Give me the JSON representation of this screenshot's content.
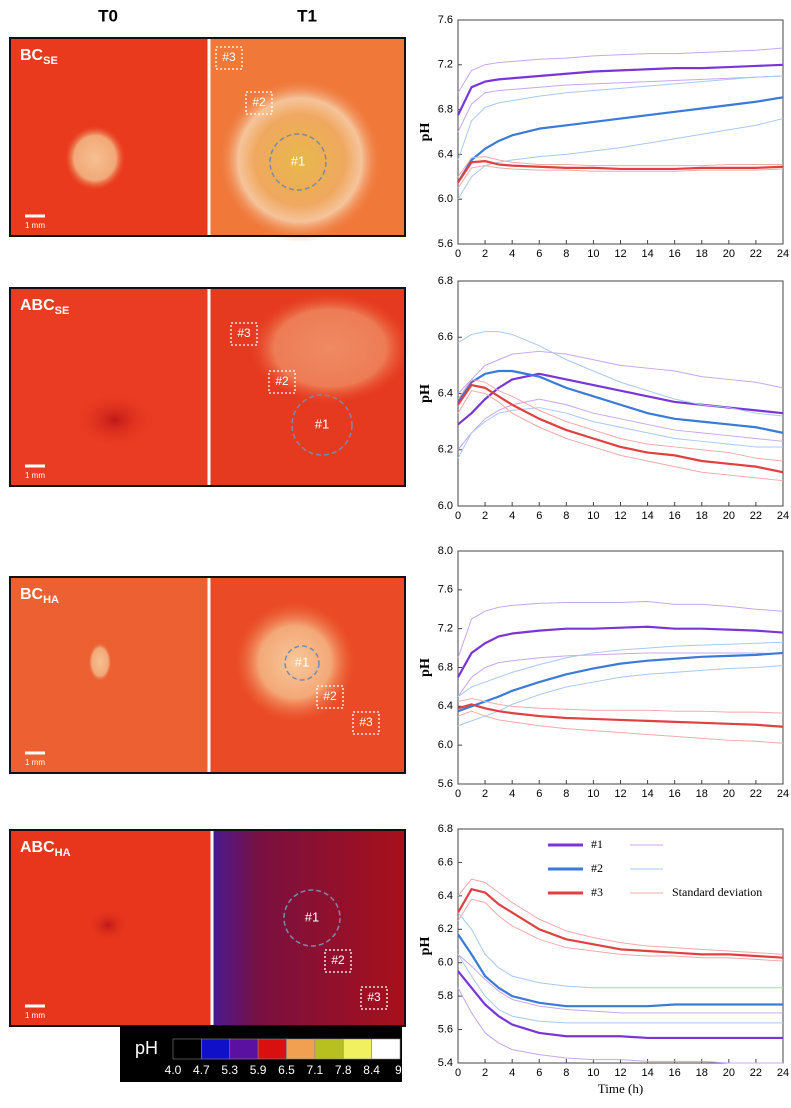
{
  "figure": {
    "column_titles": [
      "T0",
      "T1"
    ],
    "panels": [
      {
        "label": "BC",
        "label_sub": "SE",
        "regions": [
          "#1",
          "#2",
          "#3"
        ],
        "scale": "1 mm"
      },
      {
        "label": "ABC",
        "label_sub": "SE",
        "regions": [
          "#1",
          "#2",
          "#3"
        ],
        "scale": "1 mm"
      },
      {
        "label": "BC",
        "label_sub": "HA",
        "regions": [
          "#1",
          "#2",
          "#3"
        ],
        "scale": "1 mm"
      },
      {
        "label": "ABC",
        "label_sub": "HA",
        "regions": [
          "#1",
          "#2",
          "#3"
        ],
        "scale": "1 mm"
      }
    ],
    "colorbar": {
      "title": "pH",
      "ticks": [
        {
          "value": 4,
          "label": "4.0"
        },
        4.7,
        5.3,
        5.9,
        6.5,
        7.1,
        7.8,
        8.4,
        {
          "value": 9,
          "label": "9."
        }
      ],
      "colors": [
        "#000000",
        "#1010c8",
        "#5a10a0",
        "#d81010",
        "#f0a050",
        "#b8c020",
        "#f0f060",
        "#ffffff"
      ]
    }
  },
  "chart_data": [
    {
      "type": "line",
      "y_label": "pH",
      "xlim": [
        0,
        24
      ],
      "xticks": [
        0,
        2,
        4,
        6,
        8,
        10,
        12,
        14,
        16,
        18,
        20,
        22,
        24
      ],
      "ylim": [
        5.6,
        7.6
      ],
      "yticks": [
        5.6,
        {
          "value": 6,
          "label": "6.0"
        },
        6.4,
        6.8,
        7.2,
        7.6
      ],
      "x": [
        0,
        1,
        2,
        3,
        4,
        6,
        8,
        10,
        12,
        14,
        16,
        18,
        20,
        22,
        24
      ],
      "series": [
        {
          "color": "#7a35d8",
          "sd_color": "#c9a6f0",
          "values": [
            6.75,
            7.0,
            7.05,
            7.07,
            7.08,
            7.1,
            7.12,
            7.14,
            7.15,
            7.16,
            7.17,
            7.17,
            7.18,
            7.19,
            7.2
          ],
          "upper": [
            6.95,
            7.15,
            7.2,
            7.22,
            7.23,
            7.25,
            7.26,
            7.28,
            7.29,
            7.3,
            7.3,
            7.31,
            7.32,
            7.33,
            7.35
          ],
          "lower": [
            6.6,
            6.85,
            6.95,
            6.97,
            6.98,
            7.0,
            7.02,
            7.03,
            7.04,
            7.05,
            7.06,
            7.07,
            7.08,
            7.09,
            7.1
          ]
        },
        {
          "color": "#3a7ad8",
          "sd_color": "#a9c8f0",
          "values": [
            6.15,
            6.35,
            6.45,
            6.52,
            6.57,
            6.63,
            6.66,
            6.69,
            6.72,
            6.75,
            6.78,
            6.81,
            6.84,
            6.87,
            6.91
          ],
          "upper": [
            6.35,
            6.7,
            6.82,
            6.86,
            6.88,
            6.92,
            6.95,
            6.97,
            6.99,
            7.01,
            7.03,
            7.05,
            7.07,
            7.09,
            7.1
          ],
          "lower": [
            6.0,
            6.2,
            6.3,
            6.33,
            6.35,
            6.38,
            6.4,
            6.43,
            6.46,
            6.5,
            6.54,
            6.58,
            6.62,
            6.66,
            6.72
          ]
        },
        {
          "color": "#e04040",
          "sd_color": "#f2aaaa",
          "values": [
            6.15,
            6.33,
            6.34,
            6.31,
            6.3,
            6.29,
            6.28,
            6.28,
            6.27,
            6.27,
            6.27,
            6.28,
            6.28,
            6.28,
            6.29
          ],
          "upper": [
            6.2,
            6.37,
            6.38,
            6.35,
            6.33,
            6.31,
            6.31,
            6.3,
            6.3,
            6.3,
            6.3,
            6.3,
            6.31,
            6.31,
            6.31
          ],
          "lower": [
            6.1,
            6.28,
            6.3,
            6.28,
            6.27,
            6.26,
            6.26,
            6.25,
            6.25,
            6.25,
            6.25,
            6.26,
            6.26,
            6.26,
            6.27
          ]
        }
      ]
    },
    {
      "type": "line",
      "y_label": "pH",
      "xlim": [
        0,
        24
      ],
      "xticks": [
        0,
        2,
        4,
        6,
        8,
        10,
        12,
        14,
        16,
        18,
        20,
        22,
        24
      ],
      "ylim": [
        6.0,
        6.8
      ],
      "yticks": [
        {
          "value": 6,
          "label": "6.0"
        },
        6.2,
        6.4,
        6.6,
        6.8
      ],
      "x": [
        0,
        1,
        2,
        3,
        4,
        6,
        8,
        10,
        12,
        14,
        16,
        18,
        20,
        22,
        24
      ],
      "series": [
        {
          "color": "#7a35d8",
          "sd_color": "#c9a6f0",
          "values": [
            6.29,
            6.33,
            6.38,
            6.42,
            6.45,
            6.47,
            6.45,
            6.43,
            6.41,
            6.39,
            6.37,
            6.36,
            6.35,
            6.34,
            6.33
          ],
          "upper": [
            6.4,
            6.45,
            6.5,
            6.52,
            6.54,
            6.55,
            6.54,
            6.52,
            6.5,
            6.49,
            6.48,
            6.46,
            6.45,
            6.44,
            6.42
          ],
          "lower": [
            6.2,
            6.26,
            6.31,
            6.34,
            6.36,
            6.38,
            6.36,
            6.33,
            6.31,
            6.29,
            6.27,
            6.26,
            6.25,
            6.24,
            6.23
          ]
        },
        {
          "color": "#3a7ad8",
          "sd_color": "#a9c8f0",
          "values": [
            6.37,
            6.44,
            6.47,
            6.48,
            6.48,
            6.46,
            6.42,
            6.39,
            6.36,
            6.33,
            6.31,
            6.3,
            6.29,
            6.28,
            6.26
          ],
          "upper": [
            6.58,
            6.61,
            6.62,
            6.62,
            6.61,
            6.57,
            6.52,
            6.48,
            6.44,
            6.41,
            6.38,
            6.36,
            6.35,
            6.33,
            6.32
          ],
          "lower": [
            6.17,
            6.26,
            6.3,
            6.33,
            6.34,
            6.35,
            6.33,
            6.3,
            6.28,
            6.26,
            6.24,
            6.23,
            6.22,
            6.21,
            6.21
          ]
        },
        {
          "color": "#e04040",
          "sd_color": "#f2aaaa",
          "values": [
            6.36,
            6.43,
            6.42,
            6.39,
            6.36,
            6.31,
            6.27,
            6.24,
            6.21,
            6.19,
            6.18,
            6.16,
            6.15,
            6.14,
            6.12
          ],
          "upper": [
            6.38,
            6.45,
            6.44,
            6.41,
            6.39,
            6.34,
            6.3,
            6.27,
            6.24,
            6.22,
            6.21,
            6.2,
            6.19,
            6.17,
            6.16
          ],
          "lower": [
            6.33,
            6.41,
            6.4,
            6.37,
            6.33,
            6.28,
            6.24,
            6.21,
            6.18,
            6.16,
            6.14,
            6.12,
            6.11,
            6.1,
            6.09
          ]
        }
      ]
    },
    {
      "type": "line",
      "y_label": "pH",
      "xlim": [
        0,
        24
      ],
      "xticks": [
        0,
        2,
        4,
        6,
        8,
        10,
        12,
        14,
        16,
        18,
        20,
        22,
        24
      ],
      "ylim": [
        5.6,
        8.0
      ],
      "yticks": [
        5.6,
        {
          "value": 6,
          "label": "6.0"
        },
        6.4,
        6.8,
        7.2,
        7.6,
        {
          "value": 8,
          "label": "8.0"
        }
      ],
      "x": [
        0,
        1,
        2,
        3,
        4,
        6,
        8,
        10,
        12,
        14,
        16,
        18,
        20,
        22,
        24
      ],
      "series": [
        {
          "color": "#7a35d8",
          "sd_color": "#c9a6f0",
          "values": [
            6.7,
            6.95,
            7.05,
            7.12,
            7.15,
            7.18,
            7.2,
            7.2,
            7.21,
            7.22,
            7.2,
            7.2,
            7.19,
            7.18,
            7.16
          ],
          "upper": [
            6.9,
            7.3,
            7.38,
            7.42,
            7.44,
            7.46,
            7.47,
            7.47,
            7.47,
            7.48,
            7.45,
            7.45,
            7.43,
            7.4,
            7.38
          ],
          "lower": [
            6.5,
            6.7,
            6.8,
            6.85,
            6.87,
            6.9,
            6.92,
            6.93,
            6.94,
            6.95,
            6.95,
            6.95,
            6.95,
            6.95,
            6.94
          ]
        },
        {
          "color": "#3a7ad8",
          "sd_color": "#a9c8f0",
          "values": [
            6.35,
            6.4,
            6.45,
            6.5,
            6.56,
            6.65,
            6.73,
            6.79,
            6.84,
            6.87,
            6.89,
            6.91,
            6.92,
            6.93,
            6.95
          ],
          "upper": [
            6.5,
            6.6,
            6.65,
            6.7,
            6.75,
            6.83,
            6.9,
            6.95,
            6.98,
            7.0,
            7.02,
            7.03,
            7.04,
            7.05,
            7.06
          ],
          "lower": [
            6.2,
            6.25,
            6.3,
            6.35,
            6.42,
            6.52,
            6.6,
            6.65,
            6.7,
            6.73,
            6.75,
            6.77,
            6.79,
            6.8,
            6.82
          ]
        },
        {
          "color": "#e04040",
          "sd_color": "#f2aaaa",
          "values": [
            6.38,
            6.42,
            6.38,
            6.35,
            6.33,
            6.3,
            6.28,
            6.27,
            6.26,
            6.25,
            6.24,
            6.23,
            6.22,
            6.21,
            6.19
          ],
          "upper": [
            6.45,
            6.48,
            6.45,
            6.42,
            6.4,
            6.38,
            6.37,
            6.36,
            6.36,
            6.36,
            6.35,
            6.35,
            6.34,
            6.34,
            6.33
          ],
          "lower": [
            6.3,
            6.35,
            6.3,
            6.26,
            6.24,
            6.2,
            6.17,
            6.15,
            6.13,
            6.11,
            6.09,
            6.07,
            6.05,
            6.04,
            6.02
          ]
        }
      ]
    },
    {
      "type": "line",
      "y_label": "pH",
      "x_label": "Time (h)",
      "xlim": [
        0,
        24
      ],
      "xticks": [
        0,
        2,
        4,
        6,
        8,
        10,
        12,
        14,
        16,
        18,
        20,
        22,
        24
      ],
      "ylim": [
        5.4,
        6.8
      ],
      "yticks": [
        5.4,
        5.6,
        5.8,
        {
          "value": 6,
          "label": "6.0"
        },
        6.2,
        6.4,
        6.6,
        6.8
      ],
      "legend_note": "Standard deviation",
      "x": [
        0,
        1,
        2,
        3,
        4,
        6,
        8,
        10,
        12,
        14,
        16,
        18,
        20,
        22,
        24
      ],
      "series": [
        {
          "name": "#1",
          "color": "#7a35d8",
          "sd_color": "#c9a6f0",
          "values": [
            5.95,
            5.85,
            5.75,
            5.68,
            5.63,
            5.58,
            5.56,
            5.56,
            5.56,
            5.55,
            5.55,
            5.55,
            5.55,
            5.55,
            5.55
          ],
          "upper": [
            6.05,
            5.98,
            5.9,
            5.83,
            5.78,
            5.74,
            5.72,
            5.71,
            5.7,
            5.7,
            5.7,
            5.7,
            5.7,
            5.7,
            5.7
          ],
          "lower": [
            5.85,
            5.7,
            5.58,
            5.52,
            5.48,
            5.45,
            5.43,
            5.42,
            5.42,
            5.41,
            5.41,
            5.41,
            5.4,
            5.4,
            5.4
          ]
        },
        {
          "name": "#2",
          "color": "#3a7ad8",
          "sd_color": "#a9c8f0",
          "values": [
            6.17,
            6.05,
            5.92,
            5.85,
            5.8,
            5.76,
            5.74,
            5.74,
            5.74,
            5.74,
            5.75,
            5.75,
            5.75,
            5.75,
            5.75
          ],
          "upper": [
            6.3,
            6.2,
            6.05,
            5.97,
            5.92,
            5.88,
            5.86,
            5.85,
            5.85,
            5.85,
            5.85,
            5.85,
            5.85,
            5.85,
            5.85
          ],
          "lower": [
            6.05,
            5.92,
            5.8,
            5.72,
            5.68,
            5.65,
            5.64,
            5.64,
            5.64,
            5.64,
            5.64,
            5.64,
            5.64,
            5.64,
            5.64
          ]
        },
        {
          "name": "#3",
          "color": "#e04040",
          "sd_color": "#f2aaaa",
          "values": [
            6.3,
            6.44,
            6.42,
            6.35,
            6.3,
            6.2,
            6.14,
            6.11,
            6.08,
            6.07,
            6.06,
            6.05,
            6.05,
            6.04,
            6.03
          ],
          "upper": [
            6.4,
            6.5,
            6.48,
            6.42,
            6.36,
            6.26,
            6.19,
            6.15,
            6.12,
            6.1,
            6.09,
            6.08,
            6.07,
            6.06,
            6.05
          ],
          "lower": [
            6.25,
            6.38,
            6.36,
            6.28,
            6.22,
            6.14,
            6.09,
            6.07,
            6.05,
            6.04,
            6.04,
            6.03,
            6.03,
            6.02,
            6.01
          ]
        }
      ]
    }
  ]
}
